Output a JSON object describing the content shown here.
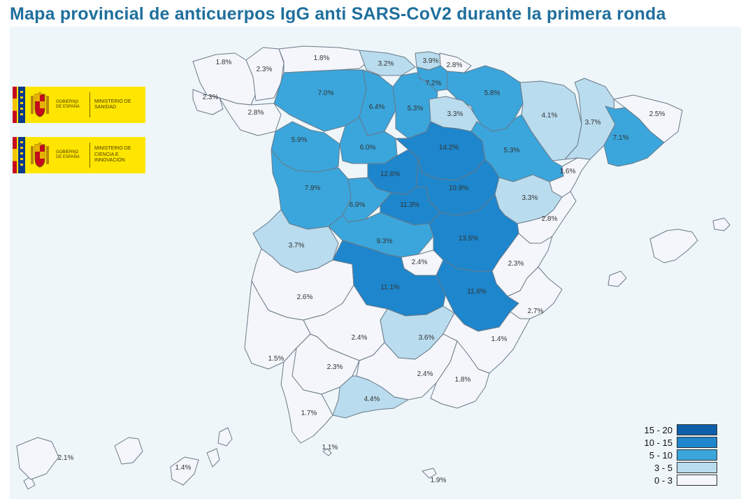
{
  "title": "Mapa provincial de anticuerpos IgG anti SARS-CoV2 durante la primera ronda",
  "logos": [
    {
      "gobierno": "GOBIERNO DE ESPAÑA",
      "ministerio": "MINISTERIO DE SANIDAD"
    },
    {
      "gobierno": "GOBIERNO DE ESPAÑA",
      "ministerio": "MINISTERIO DE CIENCIA E INNOVACIÓN"
    }
  ],
  "colors": {
    "c0": "#f4f6fb",
    "c1": "#b9dcee",
    "c2": "#3aa6dc",
    "c3": "#1d86cc",
    "c4": "#0c5fa8"
  },
  "legend": [
    {
      "label": "15 - 20",
      "color": "#0c5fa8"
    },
    {
      "label": "10 - 15",
      "color": "#1d86cc"
    },
    {
      "label": "5 - 10",
      "color": "#3aa6dc"
    },
    {
      "label": "3 - 5",
      "color": "#b9dcee"
    },
    {
      "label": "0 - 3",
      "color": "#f4f6fb"
    }
  ],
  "provinces": [
    {
      "label": "1.8%",
      "value": 1.8
    },
    {
      "label": "2.3%",
      "value": 2.3
    },
    {
      "label": "1.8%",
      "value": 1.8
    },
    {
      "label": "3.2%",
      "value": 3.2
    },
    {
      "label": "3.9%",
      "value": 3.9
    },
    {
      "label": "2.8%",
      "value": 2.8
    },
    {
      "label": "2.3%",
      "value": 2.3
    },
    {
      "label": "2.8%",
      "value": 2.8
    },
    {
      "label": "7.0%",
      "value": 7.0
    },
    {
      "label": "6.4%",
      "value": 6.4
    },
    {
      "label": "5.3%",
      "value": 5.3
    },
    {
      "label": "7.2%",
      "value": 7.2
    },
    {
      "label": "5.8%",
      "value": 5.8
    },
    {
      "label": "3.3%",
      "value": 3.3
    },
    {
      "label": "4.1%",
      "value": 4.1
    },
    {
      "label": "3.7%",
      "value": 3.7
    },
    {
      "label": "2.5%",
      "value": 2.5
    },
    {
      "label": "5.9%",
      "value": 5.9
    },
    {
      "label": "6.0%",
      "value": 6.0
    },
    {
      "label": "14.2%",
      "value": 14.2
    },
    {
      "label": "5.3%",
      "value": 5.3
    },
    {
      "label": "7.1%",
      "value": 7.1
    },
    {
      "label": "12.6%",
      "value": 12.6
    },
    {
      "label": "7.9%",
      "value": 7.9
    },
    {
      "label": "10.9%",
      "value": 10.9
    },
    {
      "label": "1.6%",
      "value": 1.6
    },
    {
      "label": "6.9%",
      "value": 6.9
    },
    {
      "label": "11.3%",
      "value": 11.3
    },
    {
      "label": "3.3%",
      "value": 3.3
    },
    {
      "label": "2.8%",
      "value": 2.8
    },
    {
      "label": "3.7%",
      "value": 3.7
    },
    {
      "label": "9.3%",
      "value": 9.3
    },
    {
      "label": "13.5%",
      "value": 13.5
    },
    {
      "label": "2.4%",
      "value": 2.4
    },
    {
      "label": "2.3%",
      "value": 2.3
    },
    {
      "label": "2.6%",
      "value": 2.6
    },
    {
      "label": "11.1%",
      "value": 11.1
    },
    {
      "label": "11.6%",
      "value": 11.6
    },
    {
      "label": "2.7%",
      "value": 2.7
    },
    {
      "label": "2.4%",
      "value": 2.4
    },
    {
      "label": "3.6%",
      "value": 3.6
    },
    {
      "label": "1.4%",
      "value": 1.4
    },
    {
      "label": "1.5%",
      "value": 1.5
    },
    {
      "label": "2.3%",
      "value": 2.3
    },
    {
      "label": "2.4%",
      "value": 2.4
    },
    {
      "label": "1.8%",
      "value": 1.8
    },
    {
      "label": "4.4%",
      "value": 4.4
    },
    {
      "label": "1.7%",
      "value": 1.7
    },
    {
      "label": "1.1%",
      "value": 1.1
    },
    {
      "label": "2.1%",
      "value": 2.1
    },
    {
      "label": "1.4%",
      "value": 1.4
    },
    {
      "label": "1.9%",
      "value": 1.9
    }
  ]
}
